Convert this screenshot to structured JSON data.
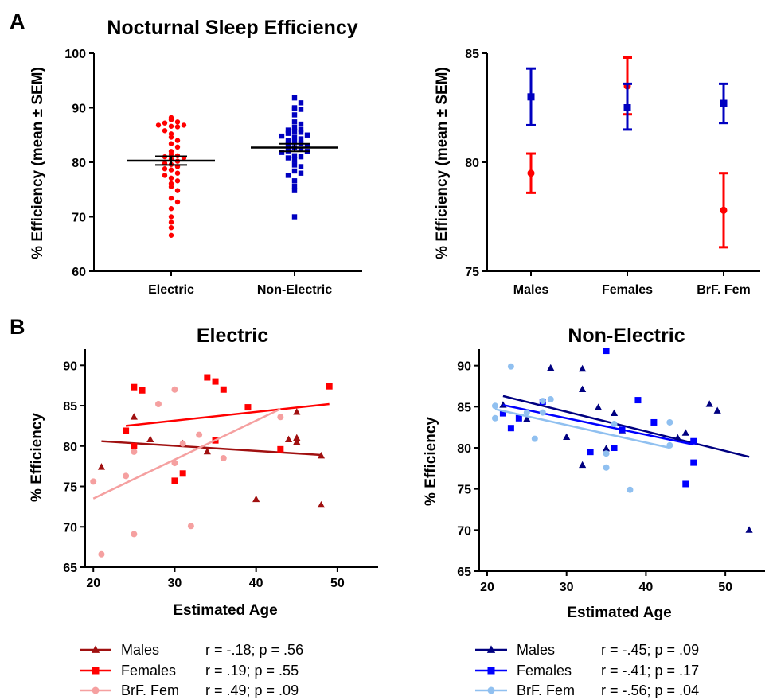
{
  "panel_labels": [
    "A",
    "B"
  ],
  "colors": {
    "electric_red": "#ff0000",
    "nonelectric_blue": "#0000c0",
    "males_dark_red": "#a01010",
    "females_red": "#ff0000",
    "brf_pink": "#f5a0a0",
    "males_navy": "#000080",
    "females_blue": "#0000ff",
    "brf_lightblue": "#90c0f0"
  },
  "chart_data": [
    {
      "id": "a-left",
      "type": "scatter",
      "title": "Nocturnal Sleep Efficiency",
      "ylabel": "% Efficiency (mean ± SEM)",
      "ylim": [
        60,
        100
      ],
      "yticks": [
        "60",
        "70",
        "80",
        "90",
        "100"
      ],
      "categories": [
        "Electric",
        "Non-Electric"
      ],
      "groups": [
        {
          "name": "Electric",
          "mean": 80.3,
          "sem": 0.8,
          "values": [
            88.2,
            87.8,
            87.4,
            87.2,
            86.8,
            86.8,
            86.6,
            86.5,
            85.8,
            85.2,
            84.6,
            84.0,
            83.4,
            82.8,
            82.0,
            81.5,
            81.2,
            81.0,
            80.8,
            80.6,
            80.2,
            79.8,
            79.6,
            79.2,
            78.8,
            78.6,
            78.0,
            77.6,
            77.1,
            76.6,
            76.1,
            75.5,
            74.8,
            73.4,
            72.7,
            71.5,
            70.0,
            69.0,
            68.0,
            66.6
          ],
          "marker": "circle",
          "color": "#ff0000"
        },
        {
          "name": "Non-Electric",
          "mean": 82.7,
          "sem": 0.7,
          "values": [
            91.8,
            90.9,
            90.0,
            89.8,
            89.7,
            88.7,
            87.4,
            87.0,
            86.4,
            86.0,
            85.9,
            85.7,
            85.5,
            85.3,
            85.0,
            84.8,
            84.6,
            84.3,
            84.0,
            83.7,
            83.5,
            83.2,
            83.0,
            82.7,
            82.4,
            82.1,
            82.0,
            81.8,
            81.2,
            81.0,
            80.8,
            80.4,
            79.5,
            79.2,
            78.4,
            78.0,
            77.6,
            76.6,
            75.6,
            74.8,
            70.0
          ],
          "marker": "square",
          "color": "#0000c0"
        }
      ]
    },
    {
      "id": "a-right",
      "type": "scatter",
      "ylabel": "% Efficiency (mean ± SEM)",
      "ylim": [
        75,
        85
      ],
      "yticks": [
        "75",
        "80",
        "85"
      ],
      "categories": [
        "Males",
        "Females",
        "BrF. Fem"
      ],
      "series": [
        {
          "name": "Electric",
          "color": "#ff0000",
          "marker": "circle",
          "points": [
            {
              "category": "Males",
              "mean": 79.5,
              "low": 78.6,
              "high": 80.4
            },
            {
              "category": "Females",
              "mean": 83.5,
              "low": 82.2,
              "high": 84.8
            },
            {
              "category": "BrF. Fem",
              "mean": 77.8,
              "low": 76.1,
              "high": 79.5
            }
          ]
        },
        {
          "name": "Non-Electric",
          "color": "#0000c0",
          "marker": "square",
          "points": [
            {
              "category": "Males",
              "mean": 83.0,
              "low": 81.7,
              "high": 84.3
            },
            {
              "category": "Females",
              "mean": 82.5,
              "low": 81.5,
              "high": 83.6
            },
            {
              "category": "BrF. Fem",
              "mean": 82.7,
              "low": 81.8,
              "high": 83.6
            }
          ]
        }
      ]
    },
    {
      "id": "b-left",
      "type": "scatter",
      "title": "Electric",
      "xlabel": "Estimated Age",
      "ylabel": "% Efficiency",
      "xlim": [
        19,
        55
      ],
      "ylim": [
        65,
        92
      ],
      "xticks": [
        "20",
        "30",
        "40",
        "50"
      ],
      "yticks": [
        "65",
        "70",
        "75",
        "80",
        "85",
        "90"
      ],
      "series": [
        {
          "name": "Males",
          "stats": "r = -.18; p = .56",
          "color": "#a01010",
          "marker": "triangle",
          "x": [
            21,
            25,
            27,
            31,
            34,
            40,
            44,
            45,
            45,
            45,
            48,
            48
          ],
          "y": [
            77.4,
            83.6,
            80.8,
            80.3,
            79.3,
            73.4,
            80.8,
            84.2,
            81.0,
            80.5,
            72.7,
            78.8
          ],
          "fit": [
            [
              21,
              80.6
            ],
            [
              48,
              78.9
            ]
          ]
        },
        {
          "name": "Females",
          "stats": "r = .19; p = .55",
          "color": "#ff0000",
          "marker": "square",
          "x": [
            24,
            25,
            25,
            26,
            30,
            31,
            34,
            35,
            35,
            36,
            39,
            43,
            49
          ],
          "y": [
            81.9,
            87.3,
            80.0,
            86.9,
            75.7,
            76.6,
            88.5,
            88.0,
            80.7,
            87.0,
            84.8,
            79.6,
            87.4
          ],
          "fit": [
            [
              24,
              82.5
            ],
            [
              49,
              85.2
            ]
          ]
        },
        {
          "name": "BrF. Fem",
          "stats": "r = .49; p = .09",
          "color": "#f5a0a0",
          "marker": "circle",
          "x": [
            20,
            21,
            24,
            25,
            25,
            28,
            30,
            30,
            31,
            32,
            33,
            36,
            43
          ],
          "y": [
            75.6,
            66.6,
            76.3,
            79.3,
            69.1,
            85.2,
            87.0,
            77.9,
            80.3,
            70.1,
            81.4,
            78.5,
            83.6
          ],
          "fit": [
            [
              20,
              73.5
            ],
            [
              43,
              84.6
            ]
          ]
        }
      ]
    },
    {
      "id": "b-right",
      "type": "scatter",
      "title": "Non-Electric",
      "xlabel": "Estimated Age",
      "ylabel": "% Efficiency",
      "xlim": [
        19,
        55
      ],
      "ylim": [
        65,
        92
      ],
      "xticks": [
        "20",
        "30",
        "40",
        "50"
      ],
      "yticks": [
        "65",
        "70",
        "75",
        "80",
        "85",
        "90"
      ],
      "series": [
        {
          "name": "Males",
          "stats": "r = -.45; p = .09",
          "color": "#000080",
          "marker": "triangle",
          "x": [
            22,
            25,
            28,
            30,
            32,
            32,
            32,
            34,
            35,
            36,
            37,
            44,
            45,
            48,
            49,
            53
          ],
          "y": [
            85.2,
            83.5,
            89.7,
            81.3,
            89.6,
            87.1,
            77.9,
            84.9,
            79.9,
            84.2,
            82.1,
            81.2,
            81.8,
            85.3,
            84.5,
            70.0
          ],
          "fit": [
            [
              22,
              86.3
            ],
            [
              53,
              78.9
            ]
          ]
        },
        {
          "name": "Females",
          "stats": "r = -.41; p = .17",
          "color": "#0000ff",
          "marker": "square",
          "x": [
            22,
            23,
            24,
            27,
            33,
            35,
            36,
            37,
            39,
            41,
            45,
            46,
            46
          ],
          "y": [
            84.2,
            82.4,
            83.6,
            85.6,
            79.5,
            91.8,
            80.0,
            82.2,
            85.8,
            83.1,
            75.6,
            78.2,
            80.8
          ],
          "fit": [
            [
              22,
              85.2
            ],
            [
              46,
              80.4
            ]
          ]
        },
        {
          "name": "BrF. Fem",
          "stats": "r = -.56; p = .04",
          "color": "#90c0f0",
          "marker": "circle",
          "x": [
            21,
            21,
            23,
            25,
            26,
            27,
            27,
            28,
            35,
            35,
            36,
            38,
            43,
            43
          ],
          "y": [
            85.1,
            83.6,
            89.9,
            84.3,
            81.1,
            85.7,
            84.3,
            85.9,
            77.6,
            79.3,
            82.9,
            74.9,
            83.1,
            80.3
          ],
          "fit": [
            [
              21,
              84.7
            ],
            [
              43,
              80.0
            ]
          ]
        }
      ]
    }
  ]
}
